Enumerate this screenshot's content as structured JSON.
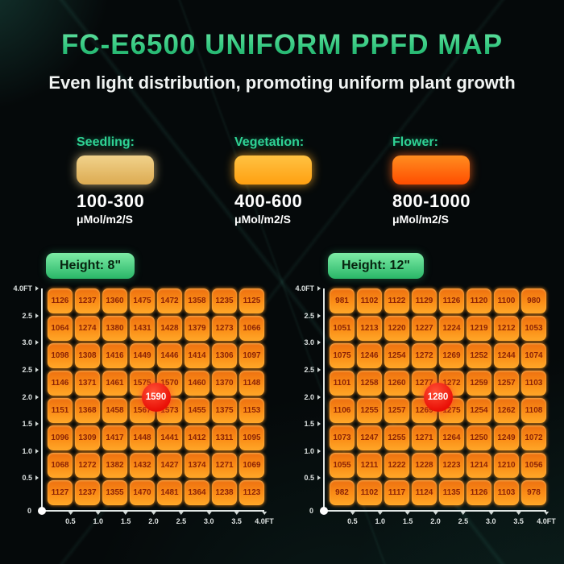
{
  "page": {
    "title": "FC-E6500 UNIFORM PPFD MAP",
    "subtitle": "Even light distribution, promoting uniform plant growth"
  },
  "legend": [
    {
      "label": "Seedling:",
      "range": "100-300",
      "unit": "μMol/m2/S",
      "color": "#e9c878"
    },
    {
      "label": "Vegetation:",
      "range": "400-600",
      "unit": "μMol/m2/S",
      "color": "#ffb123"
    },
    {
      "label": "Flower:",
      "range": "800-1000",
      "unit": "μMol/m2/S",
      "color": "#ff5c06"
    }
  ],
  "axes": {
    "y_labels": [
      "4.0FT",
      "2.5",
      "3.0",
      "2.5",
      "2.0",
      "1.5",
      "1.0",
      "0.5"
    ],
    "origin_label": "0",
    "x_labels": [
      "0.5",
      "1.0",
      "1.5",
      "2.0",
      "2.5",
      "3.0",
      "3.5",
      "4.0FT"
    ]
  },
  "chart_data": [
    {
      "type": "heatmap",
      "title": "Height: 8\"",
      "unit": "μMol/m2/S",
      "xlabel": "FT",
      "ylabel": "FT",
      "x": [
        0.5,
        1.0,
        1.5,
        2.0,
        2.5,
        3.0,
        3.5,
        4.0
      ],
      "center_value": 1590,
      "values": [
        [
          1126,
          1237,
          1360,
          1475,
          1472,
          1358,
          1235,
          1125
        ],
        [
          1064,
          1274,
          1380,
          1431,
          1428,
          1379,
          1273,
          1066
        ],
        [
          1098,
          1308,
          1416,
          1449,
          1446,
          1414,
          1306,
          1097
        ],
        [
          1146,
          1371,
          1461,
          1575,
          1570,
          1460,
          1370,
          1148
        ],
        [
          1151,
          1368,
          1458,
          1567,
          1573,
          1455,
          1375,
          1153
        ],
        [
          1096,
          1309,
          1417,
          1448,
          1441,
          1412,
          1311,
          1095
        ],
        [
          1068,
          1272,
          1382,
          1432,
          1427,
          1374,
          1271,
          1069
        ],
        [
          1127,
          1237,
          1355,
          1470,
          1481,
          1364,
          1238,
          1123
        ]
      ]
    },
    {
      "type": "heatmap",
      "title": "Height: 12\"",
      "unit": "μMol/m2/S",
      "xlabel": "FT",
      "ylabel": "FT",
      "x": [
        0.5,
        1.0,
        1.5,
        2.0,
        2.5,
        3.0,
        3.5,
        4.0
      ],
      "center_value": 1280,
      "values": [
        [
          981,
          1102,
          1122,
          1129,
          1126,
          1120,
          1100,
          980
        ],
        [
          1051,
          1213,
          1220,
          1227,
          1224,
          1219,
          1212,
          1053
        ],
        [
          1075,
          1246,
          1254,
          1272,
          1269,
          1252,
          1244,
          1074
        ],
        [
          1101,
          1258,
          1260,
          1277,
          1272,
          1259,
          1257,
          1103
        ],
        [
          1106,
          1255,
          1257,
          1269,
          1275,
          1254,
          1262,
          1108
        ],
        [
          1073,
          1247,
          1255,
          1271,
          1264,
          1250,
          1249,
          1072
        ],
        [
          1055,
          1211,
          1222,
          1228,
          1223,
          1214,
          1210,
          1056
        ],
        [
          982,
          1102,
          1117,
          1124,
          1135,
          1126,
          1103,
          978
        ]
      ]
    }
  ]
}
